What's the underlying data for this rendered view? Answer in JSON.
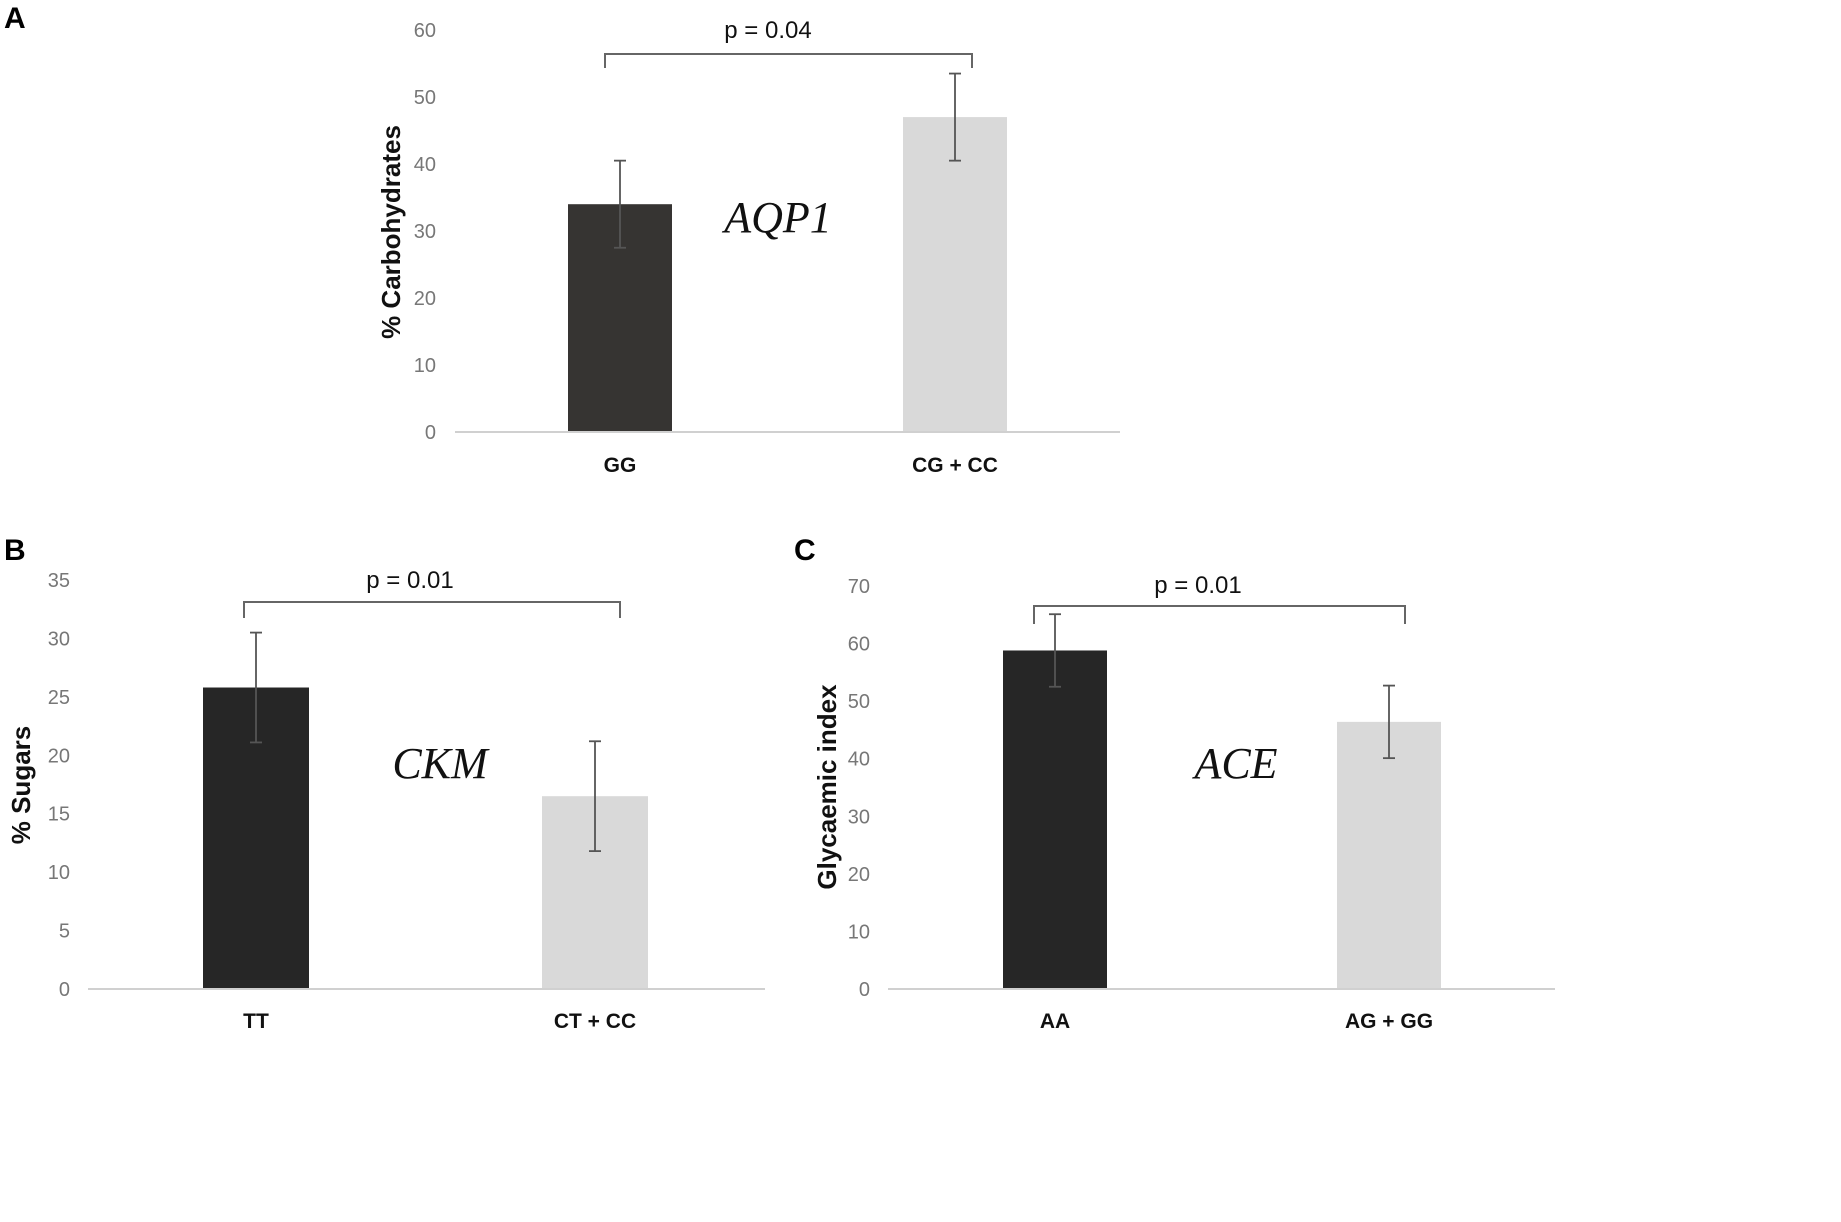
{
  "chart_data": [
    {
      "panel": "A",
      "type": "bar",
      "title": "",
      "gene": "AQP1",
      "xlabel": "",
      "ylabel": "% Carbohydrates",
      "ylim": [
        0,
        60
      ],
      "yticks": [
        0,
        10,
        20,
        30,
        40,
        50,
        60
      ],
      "categories": [
        "GG",
        "CG + CC"
      ],
      "values": [
        34,
        47
      ],
      "errors": [
        6.5,
        6.5
      ],
      "colors": [
        "#363432",
        "#d9d9d9"
      ],
      "pvalue": "p = 0.04"
    },
    {
      "panel": "B",
      "type": "bar",
      "title": "",
      "gene": "CKM",
      "xlabel": "",
      "ylabel": "% Sugars",
      "ylim": [
        0,
        35
      ],
      "yticks": [
        0,
        5,
        10,
        15,
        20,
        25,
        30,
        35
      ],
      "categories": [
        "TT",
        "CT + CC"
      ],
      "values": [
        25.8,
        16.5
      ],
      "errors": [
        4.7,
        4.7
      ],
      "colors": [
        "#262626",
        "#d9d9d9"
      ],
      "pvalue": "p = 0.01"
    },
    {
      "panel": "C",
      "type": "bar",
      "title": "",
      "gene": "ACE",
      "xlabel": "",
      "ylabel": "Glycaemic index",
      "ylim": [
        0,
        70
      ],
      "yticks": [
        0,
        10,
        20,
        30,
        40,
        50,
        60,
        70
      ],
      "categories": [
        "AA",
        "AG + GG"
      ],
      "values": [
        58.8,
        46.4
      ],
      "errors": [
        6.3,
        6.3
      ],
      "colors": [
        "#262626",
        "#d9d9d9"
      ],
      "pvalue": "p = 0.01"
    }
  ]
}
